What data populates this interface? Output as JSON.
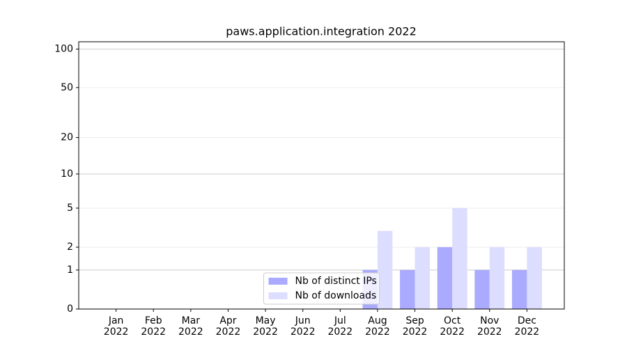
{
  "chart_data": {
    "type": "bar",
    "title": "paws.application.integration 2022",
    "categories": [
      "Jan\n2022",
      "Feb\n2022",
      "Mar\n2022",
      "Apr\n2022",
      "May\n2022",
      "Jun\n2022",
      "Jul\n2022",
      "Aug\n2022",
      "Sep\n2022",
      "Oct\n2022",
      "Nov\n2022",
      "Dec\n2022"
    ],
    "series": [
      {
        "name": "Nb of distinct IPs",
        "color": "#aaaaff",
        "values": [
          0,
          0,
          0,
          0,
          0,
          0,
          0,
          1,
          1,
          2,
          1,
          1
        ]
      },
      {
        "name": "Nb of downloads",
        "color": "#ddddff",
        "values": [
          0,
          0,
          0,
          0,
          0,
          0,
          0,
          3,
          2,
          5,
          2,
          2
        ]
      }
    ],
    "yscale": "log1p",
    "ylim": [
      0,
      114
    ],
    "yticks": [
      0,
      1,
      2,
      5,
      10,
      20,
      50,
      100
    ],
    "grid": true,
    "legend": "lower center"
  }
}
